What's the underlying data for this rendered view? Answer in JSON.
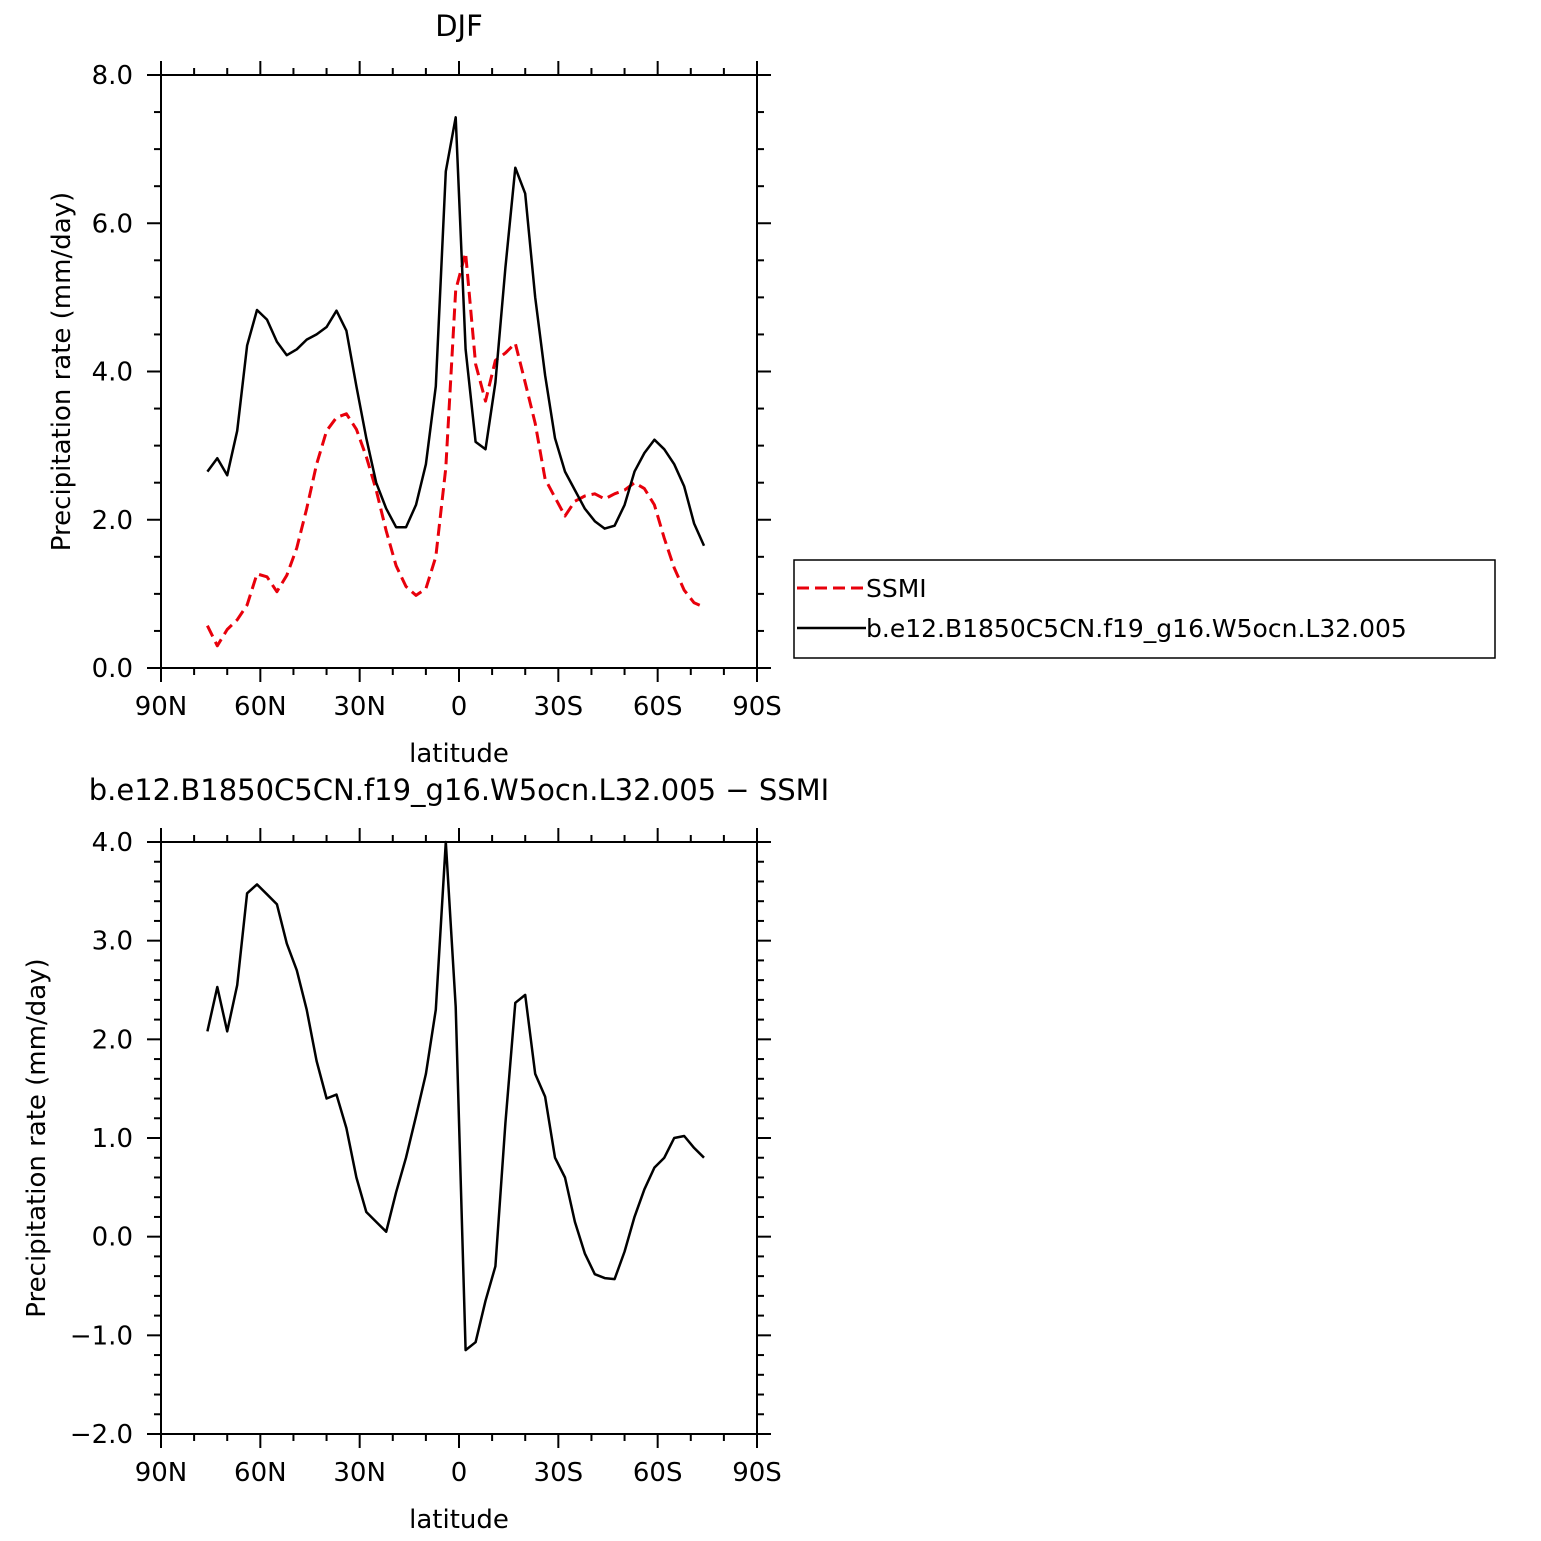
{
  "chart_data": [
    {
      "type": "line",
      "title": "DJF",
      "xlabel": "latitude",
      "ylabel": "Precipitation rate (mm/day)",
      "xlim": [
        90,
        -90
      ],
      "ylim": [
        0,
        8
      ],
      "xticks": [
        90,
        60,
        30,
        0,
        -30,
        -60,
        -90
      ],
      "xtick_labels": [
        "90N",
        "60N",
        "30N",
        "0",
        "30S",
        "60S",
        "90S"
      ],
      "yticks": [
        0,
        2,
        4,
        6,
        8
      ],
      "ytick_labels": [
        "0.0",
        "2.0",
        "4.0",
        "6.0",
        "8.0"
      ],
      "grid": false,
      "legend_position": "right",
      "series": [
        {
          "name": "SSMI",
          "color": "#e8000b",
          "style": "dashed",
          "x": [
            76,
            73,
            70,
            67,
            64,
            61,
            58,
            55,
            52,
            49,
            46,
            43,
            40,
            37,
            34,
            31,
            28,
            25,
            22,
            19,
            16,
            13,
            10,
            7,
            4,
            1,
            -2,
            -5,
            -8,
            -11,
            -14,
            -17,
            -20,
            -23,
            -26,
            -29,
            -32,
            -35,
            -38,
            -41,
            -44,
            -47,
            -50,
            -53,
            -56,
            -59,
            -62,
            -65,
            -68,
            -71,
            -74
          ],
          "y": [
            0.57,
            0.3,
            0.52,
            0.65,
            0.85,
            1.27,
            1.23,
            1.03,
            1.25,
            1.62,
            2.15,
            2.75,
            3.2,
            3.38,
            3.43,
            3.22,
            2.85,
            2.4,
            1.85,
            1.38,
            1.1,
            0.98,
            1.07,
            1.5,
            2.7,
            5.1,
            5.6,
            4.1,
            3.6,
            4.15,
            4.25,
            4.38,
            3.85,
            3.3,
            2.55,
            2.3,
            2.05,
            2.25,
            2.32,
            2.35,
            2.28,
            2.35,
            2.4,
            2.5,
            2.42,
            2.2,
            1.75,
            1.35,
            1.05,
            0.88,
            0.82
          ]
        },
        {
          "name": "b.e12.B1850C5CN.f19_g16.W5ocn.L32.005",
          "color": "#000000",
          "style": "solid",
          "x": [
            76,
            73,
            70,
            67,
            64,
            61,
            58,
            55,
            52,
            49,
            46,
            43,
            40,
            37,
            34,
            31,
            28,
            25,
            22,
            19,
            16,
            13,
            10,
            7,
            4,
            1,
            -2,
            -5,
            -8,
            -11,
            -14,
            -17,
            -20,
            -23,
            -26,
            -29,
            -32,
            -35,
            -38,
            -41,
            -44,
            -47,
            -50,
            -53,
            -56,
            -59,
            -62,
            -65,
            -68,
            -71,
            -74
          ],
          "y": [
            2.65,
            2.83,
            2.6,
            3.2,
            4.35,
            4.83,
            4.7,
            4.4,
            4.22,
            4.3,
            4.43,
            4.5,
            4.6,
            4.82,
            4.55,
            3.8,
            3.1,
            2.5,
            2.15,
            1.9,
            1.9,
            2.2,
            2.75,
            3.8,
            6.7,
            7.43,
            4.3,
            3.05,
            2.95,
            3.85,
            5.4,
            6.75,
            6.4,
            5.0,
            3.95,
            3.1,
            2.65,
            2.4,
            2.15,
            1.98,
            1.88,
            1.92,
            2.2,
            2.65,
            2.9,
            3.08,
            2.95,
            2.75,
            2.45,
            1.95,
            1.65
          ]
        }
      ]
    },
    {
      "type": "line",
      "title": "b.e12.B1850C5CN.f19_g16.W5ocn.L32.005 - SSMI",
      "xlabel": "latitude",
      "ylabel": "Precipitation rate (mm/day)",
      "xlim": [
        90,
        -90
      ],
      "ylim": [
        -2,
        4
      ],
      "xticks": [
        90,
        60,
        30,
        0,
        -30,
        -60,
        -90
      ],
      "xtick_labels": [
        "90N",
        "60N",
        "30N",
        "0",
        "30S",
        "60S",
        "90S"
      ],
      "yticks": [
        -2,
        -1,
        0,
        1,
        2,
        3,
        4
      ],
      "ytick_labels": [
        "-2.0",
        "-1.0",
        "0.0",
        "1.0",
        "2.0",
        "3.0",
        "4.0"
      ],
      "grid": false,
      "series": [
        {
          "color": "#000000",
          "style": "solid",
          "x": [
            76,
            73,
            70,
            67,
            64,
            61,
            58,
            55,
            52,
            49,
            46,
            43,
            40,
            37,
            34,
            31,
            28,
            25,
            22,
            19,
            16,
            13,
            10,
            7,
            4,
            1,
            -2,
            -5,
            -8,
            -11,
            -14,
            -17,
            -20,
            -23,
            -26,
            -29,
            -32,
            -35,
            -38,
            -41,
            -44,
            -47,
            -50,
            -53,
            -56,
            -59,
            -62,
            -65,
            -68,
            -71,
            -74
          ],
          "y": [
            2.08,
            2.53,
            2.08,
            2.55,
            3.48,
            3.57,
            3.47,
            3.37,
            2.97,
            2.7,
            2.3,
            1.78,
            1.4,
            1.44,
            1.1,
            0.6,
            0.25,
            0.15,
            0.05,
            0.45,
            0.8,
            1.22,
            1.65,
            2.3,
            4.0,
            2.33,
            -1.15,
            -1.07,
            -0.65,
            -0.3,
            1.15,
            2.37,
            2.45,
            1.65,
            1.42,
            0.8,
            0.6,
            0.15,
            -0.17,
            -0.38,
            -0.42,
            -0.43,
            -0.15,
            0.2,
            0.48,
            0.7,
            0.8,
            1.0,
            1.02,
            0.9,
            0.8
          ]
        }
      ]
    }
  ]
}
